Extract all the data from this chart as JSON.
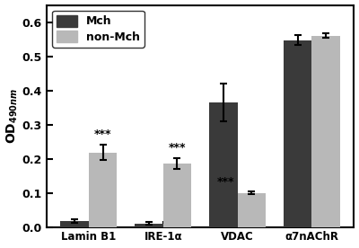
{
  "categories": [
    "Lamin B1",
    "IRE-1α",
    "VDAC",
    "α7nAChR"
  ],
  "mch_values": [
    0.018,
    0.01,
    0.365,
    0.547
  ],
  "nonmch_values": [
    0.218,
    0.185,
    0.1,
    0.56
  ],
  "mch_errors": [
    0.005,
    0.004,
    0.055,
    0.015
  ],
  "nonmch_errors": [
    0.022,
    0.016,
    0.005,
    0.007
  ],
  "mch_color": "#3a3a3a",
  "nonmch_color": "#b8b8b8",
  "ylabel": "OD$_{490nm}$",
  "ylim": [
    0,
    0.65
  ],
  "yticks": [
    0.0,
    0.1,
    0.2,
    0.3,
    0.4,
    0.5,
    0.6
  ],
  "sig_on_nonmch": [
    true,
    true,
    false,
    false
  ],
  "sig_on_nonmch_bar": [
    false,
    false,
    true,
    false
  ],
  "bar_width": 0.38,
  "legend_labels": [
    "Mch",
    "non-Mch"
  ],
  "background_color": "#ffffff"
}
